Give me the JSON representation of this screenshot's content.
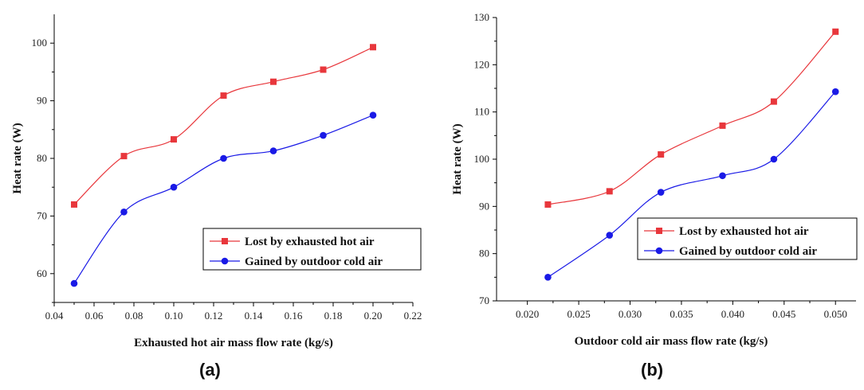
{
  "chart_data": [
    {
      "type": "line",
      "panel_label": "(a)",
      "xlabel": "Exhausted hot air mass flow rate (kg/s)",
      "ylabel": "Heat rate (W)",
      "xlim": [
        0.04,
        0.22
      ],
      "ylim": [
        55,
        105
      ],
      "xticks": [
        "0.04",
        "0.06",
        "0.08",
        "0.10",
        "0.12",
        "0.14",
        "0.16",
        "0.18",
        "0.20",
        "0.22"
      ],
      "yticks": [
        "60",
        "70",
        "80",
        "90",
        "100"
      ],
      "x": [
        0.05,
        0.075,
        0.1,
        0.125,
        0.15,
        0.175,
        0.2
      ],
      "series": [
        {
          "name": "Lost by exhausted hot air",
          "color": "#e8373c",
          "marker": "square",
          "values": [
            72.0,
            80.4,
            83.3,
            90.9,
            93.3,
            95.4,
            99.3
          ]
        },
        {
          "name": "Gained by outdoor cold air",
          "color": "#1a1ae6",
          "marker": "circle",
          "values": [
            58.3,
            70.7,
            75.0,
            80.0,
            81.3,
            84.0,
            87.5
          ]
        }
      ],
      "legend": "bottom-right"
    },
    {
      "type": "line",
      "panel_label": "(b)",
      "xlabel": "Outdoor cold air mass flow rate (kg/s)",
      "ylabel": "Heat rate (W)",
      "xlim": [
        0.017,
        0.052
      ],
      "ylim": [
        70,
        130
      ],
      "xticks": [
        "0.020",
        "0.025",
        "0.030",
        "0.035",
        "0.040",
        "0.045",
        "0.050"
      ],
      "yticks": [
        "70",
        "80",
        "90",
        "100",
        "110",
        "120",
        "130"
      ],
      "x": [
        0.022,
        0.028,
        0.033,
        0.039,
        0.044,
        0.05
      ],
      "series": [
        {
          "name": "Lost by exhausted hot air",
          "color": "#e8373c",
          "marker": "square",
          "values": [
            90.4,
            93.2,
            101.0,
            107.1,
            112.2,
            127.0
          ]
        },
        {
          "name": "Gained by outdoor cold air",
          "color": "#1a1ae6",
          "marker": "circle",
          "values": [
            75.0,
            83.9,
            93.0,
            96.5,
            100.0,
            114.3
          ]
        }
      ],
      "legend": "bottom-right"
    }
  ]
}
